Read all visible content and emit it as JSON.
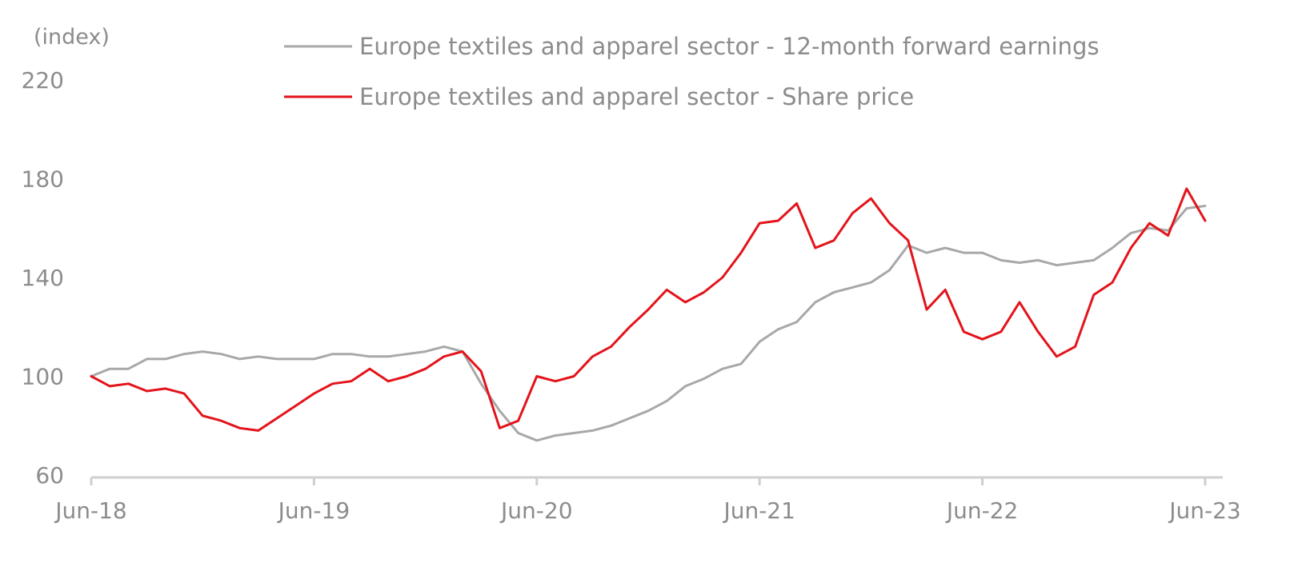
{
  "colors": {
    "earnings": "#a8a8a8",
    "share_price": "#e3141b",
    "axis": "#cfcfcf",
    "text": "#8c8c8c"
  },
  "chart_data": {
    "type": "line",
    "unit_label": "(index)",
    "grid": false,
    "legend_position": "top-center",
    "ylim": [
      60,
      220
    ],
    "yticks": [
      "220",
      "180",
      "140",
      "100",
      "60"
    ],
    "xlim": [
      "2018-06",
      "2023-06"
    ],
    "xticks": [
      {
        "label": "Jun-18",
        "date": "2018-06"
      },
      {
        "label": "Jun-19",
        "date": "2019-06"
      },
      {
        "label": "Jun-20",
        "date": "2020-06"
      },
      {
        "label": "Jun-21",
        "date": "2021-06"
      },
      {
        "label": "Jun-22",
        "date": "2022-06"
      },
      {
        "label": "Jun-23",
        "date": "2023-06"
      }
    ],
    "series": [
      {
        "name": "Europe textiles and apparel sector - 12-month forward earnings",
        "color": "#a8a8a8",
        "points": [
          [
            "2018-06",
            100
          ],
          [
            "2018-07",
            103
          ],
          [
            "2018-08",
            103
          ],
          [
            "2018-09",
            107
          ],
          [
            "2018-10",
            107
          ],
          [
            "2018-11",
            109
          ],
          [
            "2018-12",
            110
          ],
          [
            "2019-01",
            109
          ],
          [
            "2019-02",
            107
          ],
          [
            "2019-03",
            108
          ],
          [
            "2019-04",
            107
          ],
          [
            "2019-05",
            107
          ],
          [
            "2019-06",
            107
          ],
          [
            "2019-07",
            109
          ],
          [
            "2019-08",
            109
          ],
          [
            "2019-09",
            108
          ],
          [
            "2019-10",
            108
          ],
          [
            "2019-11",
            109
          ],
          [
            "2019-12",
            110
          ],
          [
            "2020-01",
            112
          ],
          [
            "2020-02",
            110
          ],
          [
            "2020-03",
            97
          ],
          [
            "2020-04",
            86
          ],
          [
            "2020-05",
            77
          ],
          [
            "2020-06",
            74
          ],
          [
            "2020-07",
            76
          ],
          [
            "2020-08",
            77
          ],
          [
            "2020-09",
            78
          ],
          [
            "2020-10",
            80
          ],
          [
            "2020-11",
            83
          ],
          [
            "2020-12",
            86
          ],
          [
            "2021-01",
            90
          ],
          [
            "2021-02",
            96
          ],
          [
            "2021-03",
            99
          ],
          [
            "2021-04",
            103
          ],
          [
            "2021-05",
            105
          ],
          [
            "2021-06",
            114
          ],
          [
            "2021-07",
            119
          ],
          [
            "2021-08",
            122
          ],
          [
            "2021-09",
            130
          ],
          [
            "2021-10",
            134
          ],
          [
            "2021-11",
            136
          ],
          [
            "2021-12",
            138
          ],
          [
            "2022-01",
            143
          ],
          [
            "2022-02",
            153
          ],
          [
            "2022-03",
            150
          ],
          [
            "2022-04",
            152
          ],
          [
            "2022-05",
            150
          ],
          [
            "2022-06",
            150
          ],
          [
            "2022-07",
            147
          ],
          [
            "2022-08",
            146
          ],
          [
            "2022-09",
            147
          ],
          [
            "2022-10",
            145
          ],
          [
            "2022-11",
            146
          ],
          [
            "2022-12",
            147
          ],
          [
            "2023-01",
            152
          ],
          [
            "2023-02",
            158
          ],
          [
            "2023-03",
            160
          ],
          [
            "2023-04",
            159
          ],
          [
            "2023-05",
            168
          ],
          [
            "2023-06",
            169
          ]
        ]
      },
      {
        "name": "Europe textiles and apparel sector -  Share price",
        "color": "#e3141b",
        "points": [
          [
            "2018-06",
            100
          ],
          [
            "2018-07",
            96
          ],
          [
            "2018-08",
            97
          ],
          [
            "2018-09",
            94
          ],
          [
            "2018-10",
            95
          ],
          [
            "2018-11",
            93
          ],
          [
            "2018-12",
            84
          ],
          [
            "2019-01",
            82
          ],
          [
            "2019-02",
            79
          ],
          [
            "2019-03",
            78
          ],
          [
            "2019-04",
            83
          ],
          [
            "2019-05",
            88
          ],
          [
            "2019-06",
            93
          ],
          [
            "2019-07",
            97
          ],
          [
            "2019-08",
            98
          ],
          [
            "2019-09",
            103
          ],
          [
            "2019-10",
            98
          ],
          [
            "2019-11",
            100
          ],
          [
            "2019-12",
            103
          ],
          [
            "2020-01",
            108
          ],
          [
            "2020-02",
            110
          ],
          [
            "2020-03",
            102
          ],
          [
            "2020-04",
            79
          ],
          [
            "2020-05",
            82
          ],
          [
            "2020-06",
            100
          ],
          [
            "2020-07",
            98
          ],
          [
            "2020-08",
            100
          ],
          [
            "2020-09",
            108
          ],
          [
            "2020-10",
            112
          ],
          [
            "2020-11",
            120
          ],
          [
            "2020-12",
            127
          ],
          [
            "2021-01",
            135
          ],
          [
            "2021-02",
            130
          ],
          [
            "2021-03",
            134
          ],
          [
            "2021-04",
            140
          ],
          [
            "2021-05",
            150
          ],
          [
            "2021-06",
            162
          ],
          [
            "2021-07",
            163
          ],
          [
            "2021-08",
            170
          ],
          [
            "2021-09",
            152
          ],
          [
            "2021-10",
            155
          ],
          [
            "2021-11",
            166
          ],
          [
            "2021-12",
            172
          ],
          [
            "2022-01",
            162
          ],
          [
            "2022-02",
            155
          ],
          [
            "2022-03",
            127
          ],
          [
            "2022-04",
            135
          ],
          [
            "2022-05",
            118
          ],
          [
            "2022-06",
            115
          ],
          [
            "2022-07",
            118
          ],
          [
            "2022-08",
            130
          ],
          [
            "2022-09",
            118
          ],
          [
            "2022-10",
            108
          ],
          [
            "2022-11",
            112
          ],
          [
            "2022-12",
            133
          ],
          [
            "2023-01",
            138
          ],
          [
            "2023-02",
            152
          ],
          [
            "2023-03",
            162
          ],
          [
            "2023-04",
            157
          ],
          [
            "2023-05",
            176
          ],
          [
            "2023-06",
            163
          ]
        ]
      }
    ]
  }
}
